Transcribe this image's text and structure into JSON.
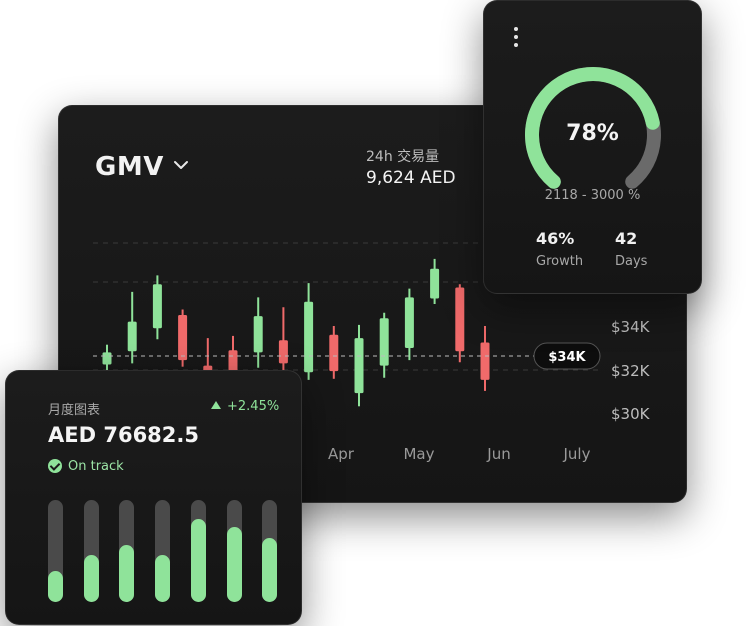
{
  "gmv_card": {
    "title": "GMV",
    "volume_label": "24h 交易量",
    "volume_value": "9,624 AED",
    "current_price_tag": "$34K",
    "price_axis": [
      "$34K",
      "$32K",
      "$30K"
    ],
    "months": [
      "Apr",
      "May",
      "Jun",
      "July"
    ]
  },
  "gauge_card": {
    "percent_label": "78%",
    "percent_value": 78,
    "range_text": "2118 - 3000 %",
    "growth_value": "46%",
    "growth_label": "Growth",
    "days_value": "42",
    "days_label": "Days"
  },
  "monthly_card": {
    "title": "月度图表",
    "change": "+2.45%",
    "amount": "AED 76682.5",
    "status": "On track",
    "bar_levels": [
      0.3,
      0.46,
      0.56,
      0.46,
      0.81,
      0.74,
      0.63
    ]
  },
  "colors": {
    "up": "#8fe39a",
    "down": "#f06a6a",
    "card_bg": "#171717"
  },
  "chart_data": {
    "type": "candlestick",
    "y_ticks": [
      "$34K",
      "$32K",
      "$30K"
    ],
    "x_ticks": [
      "Apr",
      "May",
      "Jun",
      "July"
    ],
    "candles": [
      {
        "dir": "up",
        "open": 32.25,
        "close": 32.8,
        "high": 33.15,
        "low": 31.9
      },
      {
        "dir": "up",
        "open": 32.85,
        "close": 34.2,
        "high": 35.55,
        "low": 32.3
      },
      {
        "dir": "up",
        "open": 33.9,
        "close": 35.9,
        "high": 36.3,
        "low": 33.4
      },
      {
        "dir": "down",
        "open": 34.5,
        "close": 32.45,
        "high": 34.75,
        "low": 32.15
      },
      {
        "dir": "down",
        "open": 32.2,
        "close": 31.3,
        "high": 33.45,
        "low": 30.4
      },
      {
        "dir": "down",
        "open": 32.9,
        "close": 31.8,
        "high": 33.55,
        "low": 31.2
      },
      {
        "dir": "up",
        "open": 32.8,
        "close": 34.45,
        "high": 35.3,
        "low": 32.1
      },
      {
        "dir": "down",
        "open": 33.35,
        "close": 32.3,
        "high": 34.85,
        "low": 31.65
      },
      {
        "dir": "up",
        "open": 31.9,
        "close": 35.1,
        "high": 35.95,
        "low": 31.55
      },
      {
        "dir": "down",
        "open": 33.6,
        "close": 31.95,
        "high": 34.0,
        "low": 31.6
      },
      {
        "dir": "up",
        "open": 30.95,
        "close": 33.45,
        "high": 34.05,
        "low": 30.35
      },
      {
        "dir": "up",
        "open": 32.2,
        "close": 34.35,
        "high": 34.6,
        "low": 31.65
      },
      {
        "dir": "up",
        "open": 33.0,
        "close": 35.3,
        "high": 35.7,
        "low": 32.45
      },
      {
        "dir": "up",
        "open": 35.25,
        "close": 36.6,
        "high": 37.05,
        "low": 35.0
      },
      {
        "dir": "down",
        "open": 35.75,
        "close": 32.85,
        "high": 35.9,
        "low": 32.35
      },
      {
        "dir": "down",
        "open": 33.25,
        "close": 31.55,
        "high": 34.0,
        "low": 31.05
      }
    ],
    "current_value": 34
  }
}
